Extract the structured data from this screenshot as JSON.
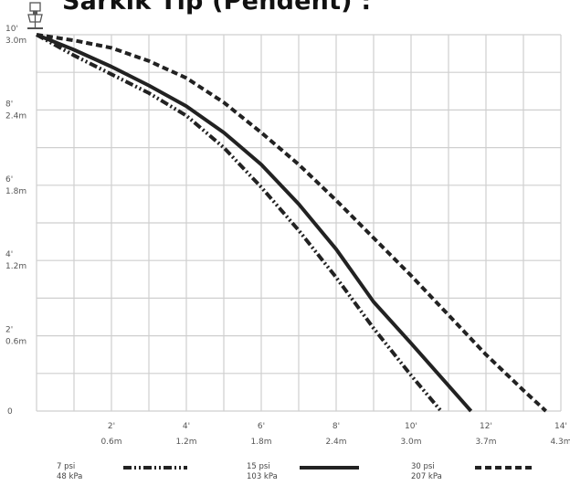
{
  "title": "Sarkık Tip (Pendent) :",
  "colors": {
    "grid": "#cfcfcf",
    "line": "#222222",
    "text": "#555555"
  },
  "icon": "sprinkler-head-icon",
  "chart_data": {
    "type": "line",
    "title": "Sarkık Tip (Pendent) :",
    "xlabel": "",
    "ylabel": "",
    "xlim": [
      0,
      14
    ],
    "ylim": [
      0,
      10
    ],
    "x_ticks": [
      {
        "value": 2,
        "ft": "2'",
        "m": "0.6m"
      },
      {
        "value": 4,
        "ft": "4'",
        "m": "1.2m"
      },
      {
        "value": 6,
        "ft": "6'",
        "m": "1.8m"
      },
      {
        "value": 8,
        "ft": "8'",
        "m": "2.4m"
      },
      {
        "value": 10,
        "ft": "10'",
        "m": "3.0m"
      },
      {
        "value": 12,
        "ft": "12'",
        "m": "3.7m"
      },
      {
        "value": 14,
        "ft": "14'",
        "m": "4.3m"
      }
    ],
    "y_ticks": [
      {
        "value": 10,
        "ft": "10'",
        "m": "3.0m"
      },
      {
        "value": 8,
        "ft": "8'",
        "m": "2.4m"
      },
      {
        "value": 6,
        "ft": "6'",
        "m": "1.8m"
      },
      {
        "value": 4,
        "ft": "4'",
        "m": "1.2m"
      },
      {
        "value": 2,
        "ft": "2'",
        "m": "0.6m"
      },
      {
        "value": 0,
        "ft": "0",
        "m": ""
      }
    ],
    "grid": true,
    "legend_position": "bottom",
    "series": [
      {
        "name": "7 psi",
        "name2": "48 kPa",
        "style": "dashdotdot",
        "x": [
          0,
          1,
          2,
          3,
          4,
          5,
          6,
          7,
          8,
          9,
          10,
          10.8
        ],
        "y": [
          10,
          9.45,
          8.95,
          8.45,
          7.85,
          7.0,
          5.95,
          4.8,
          3.55,
          2.2,
          0.95,
          0
        ]
      },
      {
        "name": "15 psi",
        "name2": "103 kPa",
        "style": "solid",
        "x": [
          0,
          1,
          2,
          3,
          4,
          5,
          6,
          7,
          8,
          9,
          10,
          11.6
        ],
        "y": [
          10,
          9.6,
          9.15,
          8.65,
          8.1,
          7.4,
          6.55,
          5.5,
          4.3,
          2.9,
          1.8,
          0
        ]
      },
      {
        "name": "30 psi",
        "name2": "207 kPa",
        "style": "dashed",
        "x": [
          0,
          1,
          2,
          3,
          4,
          5,
          6,
          7,
          8,
          9,
          10,
          11,
          12,
          13,
          13.6
        ],
        "y": [
          10,
          9.85,
          9.65,
          9.3,
          8.85,
          8.2,
          7.4,
          6.55,
          5.6,
          4.6,
          3.6,
          2.55,
          1.5,
          0.55,
          0
        ]
      }
    ]
  }
}
